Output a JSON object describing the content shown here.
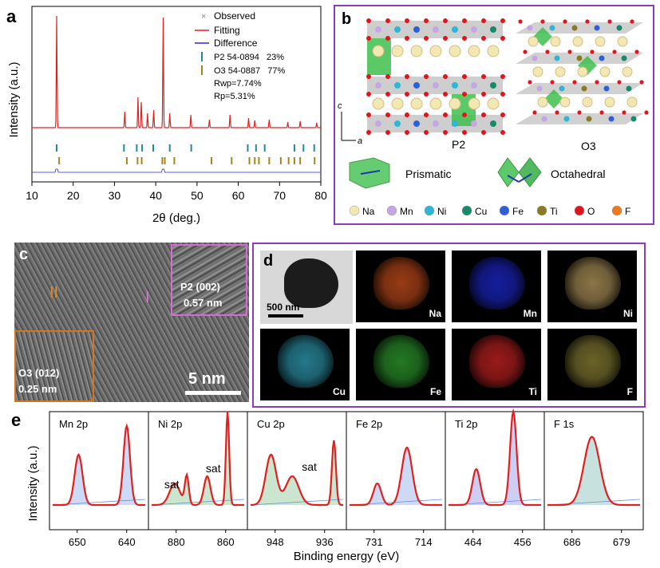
{
  "panel_a": {
    "letter": "a",
    "xlabel": "2θ (deg.)",
    "ylabel": "Intensity (a.u.)",
    "xticks": [
      "10",
      "20",
      "30",
      "40",
      "50",
      "60",
      "70",
      "80"
    ],
    "legend": {
      "observed": "Observed",
      "fitting": "Fitting",
      "difference": "Difference",
      "p2": "P2 54-0894   23%",
      "o3": "O3 54-0887   77%",
      "rwp": "Rwp=7.74%",
      "rp": "Rp=5.31%"
    },
    "colors": {
      "observed": "#888888",
      "fitting": "#e0201e",
      "difference": "#2b2bd9",
      "p2": "#1c8aa0",
      "o3": "#a88316"
    }
  },
  "panel_b": {
    "letter": "b",
    "labels": {
      "p2": "P2",
      "o3": "O3",
      "c_axis": "c",
      "a_axis": "a",
      "prismatic": "Prismatic",
      "octahedral": "Octahedral"
    },
    "legend": [
      {
        "label": "Na",
        "color": "#f3e7b4"
      },
      {
        "label": "Mn",
        "color": "#c6a6e2"
      },
      {
        "label": "Ni",
        "color": "#2fb5d6"
      },
      {
        "label": "Cu",
        "color": "#188a6a"
      },
      {
        "label": "Fe",
        "color": "#2f5fd8"
      },
      {
        "label": "Ti",
        "color": "#8a7a20"
      },
      {
        "label": "O",
        "color": "#e3141b"
      },
      {
        "label": "F",
        "color": "#ee7a20"
      }
    ],
    "frame_color": "#8a3db5"
  },
  "panel_c": {
    "letter": "c",
    "region_i": "I",
    "region_ii": "II",
    "inset_p2": {
      "phase": "P2 (002)",
      "spacing": "0.57 nm"
    },
    "inset_o3": {
      "phase": "O3 (012)",
      "spacing": "0.25 nm"
    },
    "scale_bar": "5 nm"
  },
  "panel_d": {
    "letter": "d",
    "scale_bar": "500 nm",
    "maps": [
      {
        "element": "Na",
        "color": "#b3461a"
      },
      {
        "element": "Mn",
        "color": "#1a23b8"
      },
      {
        "element": "Ni",
        "color": "#a48a55"
      },
      {
        "element": "Cu",
        "color": "#2a8ea3"
      },
      {
        "element": "Fe",
        "color": "#2a8f2a"
      },
      {
        "element": "Ti",
        "color": "#b51f1f"
      },
      {
        "element": "F",
        "color": "#7d7430"
      }
    ]
  },
  "panel_e": {
    "letter": "e",
    "ylabel": "Intensity (a.u.)",
    "xlabel": "Binding energy (eV)",
    "spectra": [
      {
        "title": "Mn 2p",
        "ticks": [
          "650",
          "640"
        ],
        "annotations": []
      },
      {
        "title": "Ni 2p",
        "ticks": [
          "880",
          "860"
        ],
        "annotations": [
          "sat",
          "sat"
        ]
      },
      {
        "title": "Cu 2p",
        "ticks": [
          "948",
          "936"
        ],
        "annotations": [
          "sat"
        ]
      },
      {
        "title": "Fe 2p",
        "ticks": [
          "731",
          "714"
        ],
        "annotations": []
      },
      {
        "title": "Ti 2p",
        "ticks": [
          "464",
          "456"
        ],
        "annotations": []
      },
      {
        "title": "F 1s",
        "ticks": [
          "686",
          "679"
        ],
        "annotations": []
      }
    ]
  }
}
